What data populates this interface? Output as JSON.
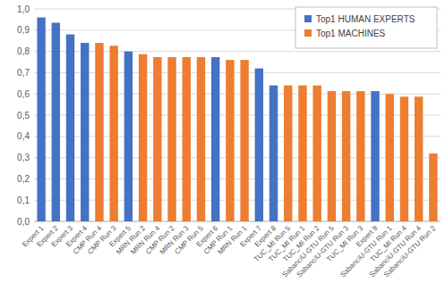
{
  "chart_data": {
    "type": "bar",
    "categories": [
      "Expert 1",
      "Expert 2",
      "Expert 3",
      "Expert 4",
      "CMP Run 4",
      "CMP Run 3",
      "Expert 5",
      "MRN Run 2",
      "MRN Run 4",
      "CMP Run 2",
      "MRN Run 3",
      "CMP Run 5",
      "Expert 6",
      "CMP Run 1",
      "MRN Run 1",
      "Expert 7",
      "Expert 8",
      "TUC_MI Run 5",
      "TUC_MI Run 1",
      "TUC_MI Run 2",
      "SabanciU-GTU Run 5",
      "SabanciU-GTU Run 3",
      "TUC_MI Run 3",
      "Expert 9",
      "SabanciU-GTU Run 1",
      "TUC_MI Run 4",
      "SabanciU-GTU Run 4",
      "SabanciU-GTU Run 2"
    ],
    "series": [
      {
        "name": "Top1 HUMAN EXPERTS",
        "color": "#4472c4",
        "values": [
          0.96,
          0.935,
          0.88,
          0.84,
          null,
          null,
          0.8,
          null,
          null,
          null,
          null,
          null,
          0.773,
          null,
          null,
          0.72,
          0.64,
          null,
          null,
          null,
          null,
          null,
          null,
          0.613,
          null,
          null,
          null,
          null
        ]
      },
      {
        "name": "Top1 MACHINES",
        "color": "#ed7d31",
        "values": [
          null,
          null,
          null,
          null,
          0.84,
          0.827,
          null,
          0.787,
          0.773,
          0.773,
          0.773,
          0.773,
          null,
          0.76,
          0.76,
          null,
          null,
          0.64,
          0.64,
          0.64,
          0.613,
          0.613,
          0.613,
          null,
          0.6,
          0.587,
          0.587,
          0.32
        ]
      }
    ],
    "ylim": [
      0,
      1
    ],
    "yticks": [
      {
        "value": 0,
        "label": "0,0"
      },
      {
        "value": 0.1,
        "label": "0,1"
      },
      {
        "value": 0.2,
        "label": "0,2"
      },
      {
        "value": 0.3,
        "label": "0,3"
      },
      {
        "value": 0.4,
        "label": "0,4"
      },
      {
        "value": 0.5,
        "label": "0,5"
      },
      {
        "value": 0.6,
        "label": "0,6"
      },
      {
        "value": 0.7,
        "label": "0,7"
      },
      {
        "value": 0.8,
        "label": "0,8"
      },
      {
        "value": 0.9,
        "label": "0,9"
      },
      {
        "value": 1,
        "label": "1,0"
      }
    ],
    "grid": true,
    "legend": "top-right"
  }
}
